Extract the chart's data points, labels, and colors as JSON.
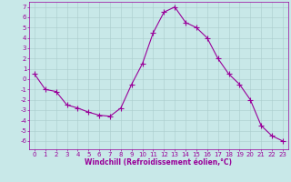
{
  "x": [
    0,
    1,
    2,
    3,
    4,
    5,
    6,
    7,
    8,
    9,
    10,
    11,
    12,
    13,
    14,
    15,
    16,
    17,
    18,
    19,
    20,
    21,
    22,
    23
  ],
  "y": [
    0.5,
    -1.0,
    -1.2,
    -2.5,
    -2.8,
    -3.2,
    -3.5,
    -3.6,
    -2.8,
    -0.5,
    1.5,
    4.5,
    6.5,
    7.0,
    5.5,
    5.0,
    4.0,
    2.0,
    0.5,
    -0.5,
    -2.0,
    -4.5,
    -5.5,
    -6.0
  ],
  "line_color": "#990099",
  "marker": "+",
  "marker_size": 4,
  "bg_color": "#c8e8e8",
  "grid_color": "#aacccc",
  "xlabel": "Windchill (Refroidissement éolien,°C)",
  "xlabel_color": "#990099",
  "xlabel_fontsize": 5.5,
  "tick_color": "#990099",
  "tick_fontsize": 5,
  "ylim": [
    -6.8,
    7.5
  ],
  "xlim": [
    -0.5,
    23.5
  ],
  "yticks": [
    -6,
    -5,
    -4,
    -3,
    -2,
    -1,
    0,
    1,
    2,
    3,
    4,
    5,
    6,
    7
  ],
  "xticks": [
    0,
    1,
    2,
    3,
    4,
    5,
    6,
    7,
    8,
    9,
    10,
    11,
    12,
    13,
    14,
    15,
    16,
    17,
    18,
    19,
    20,
    21,
    22,
    23
  ]
}
